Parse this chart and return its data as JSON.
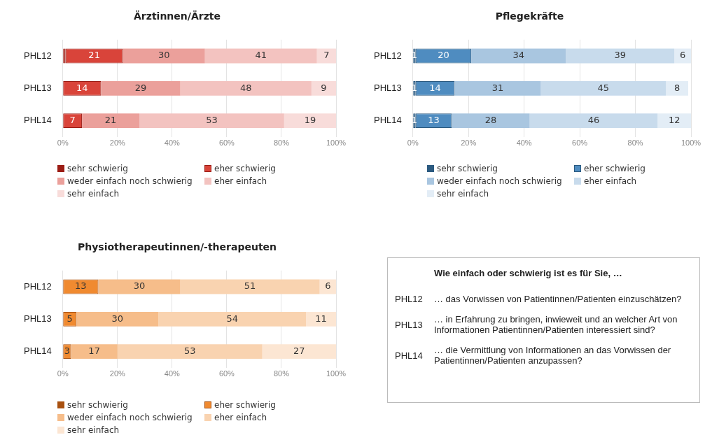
{
  "chart_data": [
    {
      "type": "bar",
      "title": "Ärztinnen/Ärzte",
      "orientation": "horizontal",
      "stacked": true,
      "categories": [
        "PHL12",
        "PHL13",
        "PHL14"
      ],
      "xlim": [
        0,
        100
      ],
      "xticks": [
        {
          "value": 0,
          "label": "0%"
        },
        {
          "value": 20,
          "label": "20%"
        },
        {
          "value": 40,
          "label": "40%"
        },
        {
          "value": 60,
          "label": "60%"
        },
        {
          "value": 80,
          "label": "80%"
        },
        {
          "value": 100,
          "label": "100%"
        }
      ],
      "grid": "x",
      "legend": "bottom",
      "series": [
        {
          "name": "sehr schwierig",
          "color": "#9b1c14",
          "values": [
            1,
            0,
            0
          ],
          "value_labels": [
            null,
            null,
            null
          ]
        },
        {
          "name": "eher schwierig",
          "color": "#d9443a",
          "values": [
            21,
            14,
            7
          ],
          "value_labels": [
            "21",
            "14",
            "7"
          ]
        },
        {
          "name": "weder einfach noch schwierig",
          "color": "#eba09b",
          "values": [
            30,
            29,
            21
          ],
          "value_labels": [
            "30",
            "29",
            "21"
          ]
        },
        {
          "name": "eher einfach",
          "color": "#f3c3c0",
          "values": [
            41,
            48,
            53
          ],
          "value_labels": [
            "41",
            "48",
            "53"
          ]
        },
        {
          "name": "sehr einfach",
          "color": "#f8dcda",
          "values": [
            7,
            9,
            19
          ],
          "value_labels": [
            "7",
            "9",
            "19"
          ]
        }
      ]
    },
    {
      "type": "bar",
      "title": "Pflegekräfte",
      "orientation": "horizontal",
      "stacked": true,
      "categories": [
        "PHL12",
        "PHL13",
        "PHL14"
      ],
      "xlim": [
        0,
        100
      ],
      "xticks": [
        {
          "value": 0,
          "label": "0%"
        },
        {
          "value": 20,
          "label": "20%"
        },
        {
          "value": 40,
          "label": "40%"
        },
        {
          "value": 60,
          "label": "60%"
        },
        {
          "value": 80,
          "label": "80%"
        },
        {
          "value": 100,
          "label": "100%"
        }
      ],
      "grid": "x",
      "legend": "bottom",
      "series": [
        {
          "name": "sehr schwierig",
          "color": "#2b5a80",
          "values": [
            1,
            1,
            1
          ],
          "value_labels": [
            "1",
            "1",
            "1"
          ]
        },
        {
          "name": "eher schwierig",
          "color": "#4f8cc0",
          "values": [
            20,
            14,
            13
          ],
          "value_labels": [
            "20",
            "14",
            "13"
          ]
        },
        {
          "name": "weder einfach noch schwierig",
          "color": "#a9c6e0",
          "values": [
            34,
            31,
            28
          ],
          "value_labels": [
            "34",
            "31",
            "28"
          ]
        },
        {
          "name": "eher einfach",
          "color": "#c8dbec",
          "values": [
            39,
            45,
            46
          ],
          "value_labels": [
            "39",
            "45",
            "46"
          ]
        },
        {
          "name": "sehr einfach",
          "color": "#e3edf6",
          "values": [
            6,
            8,
            12
          ],
          "value_labels": [
            "6",
            "8",
            "12"
          ]
        }
      ]
    },
    {
      "type": "bar",
      "title": "Physiotherapeutinnen/-therapeuten",
      "orientation": "horizontal",
      "stacked": true,
      "categories": [
        "PHL12",
        "PHL13",
        "PHL14"
      ],
      "xlim": [
        0,
        100
      ],
      "xticks": [
        {
          "value": 0,
          "label": "0%"
        },
        {
          "value": 20,
          "label": "20%"
        },
        {
          "value": 40,
          "label": "40%"
        },
        {
          "value": 60,
          "label": "60%"
        },
        {
          "value": 80,
          "label": "80%"
        },
        {
          "value": 100,
          "label": "100%"
        }
      ],
      "grid": "x",
      "legend": "bottom",
      "series": [
        {
          "name": "sehr schwierig",
          "color": "#a8500f",
          "values": [
            0,
            0,
            0
          ],
          "value_labels": [
            null,
            null,
            null
          ]
        },
        {
          "name": "eher schwierig",
          "color": "#f08a30",
          "values": [
            13,
            5,
            3
          ],
          "value_labels": [
            "13",
            "5",
            "3"
          ]
        },
        {
          "name": "weder einfach noch schwierig",
          "color": "#f6bd8a",
          "values": [
            30,
            30,
            17
          ],
          "value_labels": [
            "30",
            "30",
            "17"
          ]
        },
        {
          "name": "eher einfach",
          "color": "#f9d3b0",
          "values": [
            51,
            54,
            53
          ],
          "value_labels": [
            "51",
            "54",
            "53"
          ]
        },
        {
          "name": "sehr einfach",
          "color": "#fce6d3",
          "values": [
            6,
            11,
            27
          ],
          "value_labels": [
            "6",
            "11",
            "27"
          ]
        }
      ]
    },
    {
      "type": "other",
      "title": "Wie einfach oder schwierig ist es für Sie, …",
      "annotations": [
        "PHL12",
        "… das Vorwissen von Patientinnen/Patienten einzuschätzen?",
        "PHL13",
        "… in Erfahrung zu bringen, inwieweit und an welcher Art von Informationen Patientinnen/Patienten interessiert sind?",
        "PHL14",
        "… die Vermittlung von Informationen an das Vorwissen der Patientinnen/Patienten anzupassen?"
      ]
    }
  ]
}
